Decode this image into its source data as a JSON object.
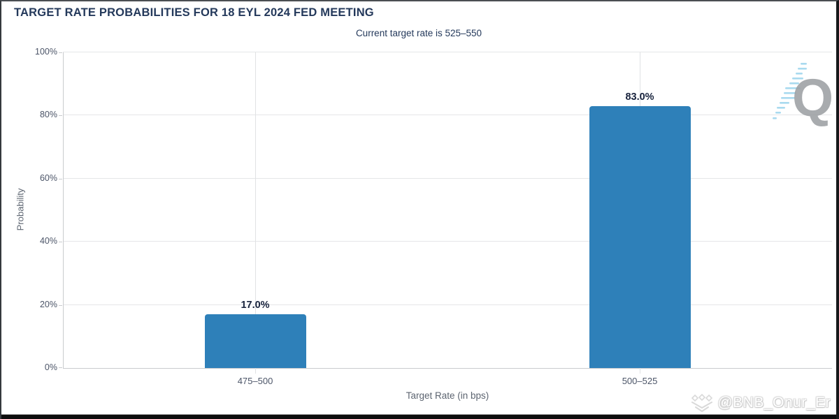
{
  "chart_data": {
    "type": "bar",
    "title": "TARGET RATE PROBABILITIES FOR 18 EYL 2024 FED MEETING",
    "subtitle": "Current target rate is 525–550",
    "categories": [
      "475–500",
      "500–525"
    ],
    "values": [
      17.0,
      83.0
    ],
    "value_labels": [
      "17.0%",
      "83.0%"
    ],
    "xlabel": "Target Rate (in bps)",
    "ylabel": "Probability",
    "ylim": [
      0,
      100
    ],
    "ytick_step": 20,
    "yticks": [
      "0%",
      "20%",
      "40%",
      "60%",
      "80%",
      "100%"
    ],
    "grid": true,
    "legend": false,
    "bar_color": "#2E80B9"
  },
  "branding": {
    "logo_letter": "Q",
    "logo_letter_color": "#9A9DA1",
    "logo_dash_color": "#A9DAEF"
  },
  "watermark": {
    "handle": "@BNB_Onur_Er",
    "icon": "diamond-emblem-icon"
  },
  "colors": {
    "bar": "#2E80B9",
    "heading_text": "#24395B",
    "data_label_text": "#18233D",
    "tick_text": "#4C5568",
    "axis_title_text": "#5C6470",
    "gridline": "#E5E6E8",
    "axis_line": "#C9CBCE"
  }
}
